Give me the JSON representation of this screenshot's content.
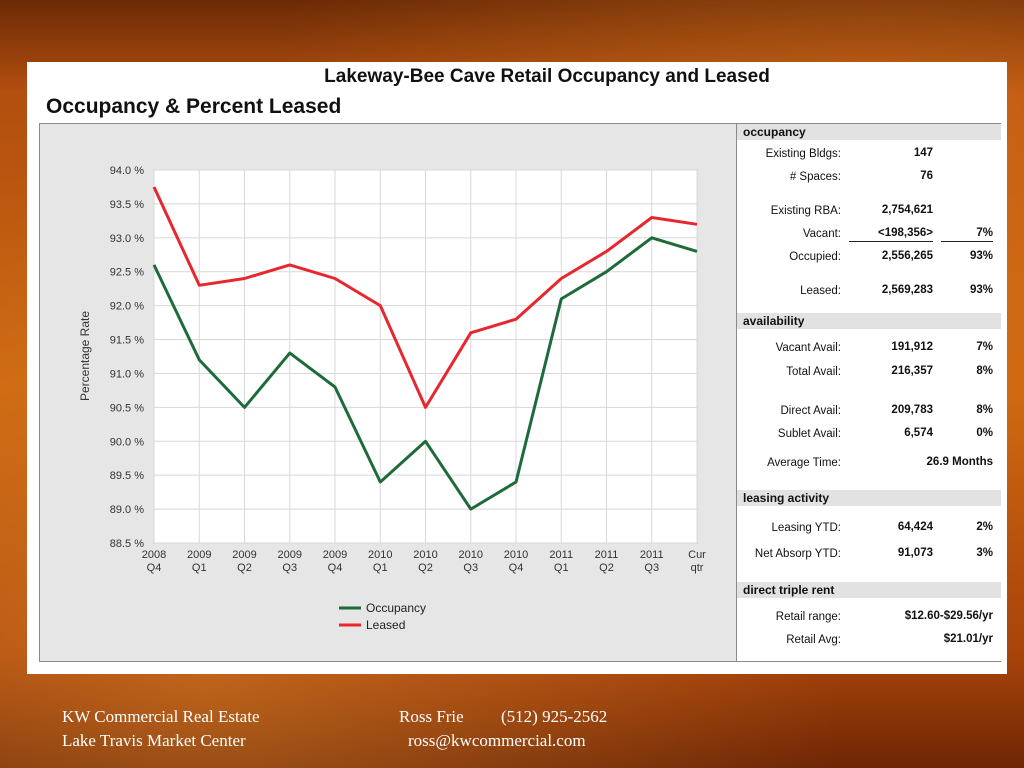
{
  "header": {
    "title": "Lakeway-Bee Cave Retail Occupancy and Leased",
    "subtitle": "Occupancy & Percent Leased"
  },
  "chart_data": {
    "type": "line",
    "ylabel": "Percentage Rate",
    "xlabel": "",
    "ylim": [
      88.5,
      94.0
    ],
    "yticks": [
      "94.0 %",
      "93.5 %",
      "93.0 %",
      "92.5 %",
      "92.0 %",
      "91.5 %",
      "91.0 %",
      "90.5 %",
      "90.0 %",
      "89.5 %",
      "89.0 %",
      "88.5 %"
    ],
    "categories": [
      [
        "2008",
        "Q4"
      ],
      [
        "2009",
        "Q1"
      ],
      [
        "2009",
        "Q2"
      ],
      [
        "2009",
        "Q3"
      ],
      [
        "2009",
        "Q4"
      ],
      [
        "2010",
        "Q1"
      ],
      [
        "2010",
        "Q2"
      ],
      [
        "2010",
        "Q3"
      ],
      [
        "2010",
        "Q4"
      ],
      [
        "2011",
        "Q1"
      ],
      [
        "2011",
        "Q2"
      ],
      [
        "2011",
        "Q3"
      ],
      [
        "Cur",
        "qtr"
      ]
    ],
    "series": [
      {
        "name": "Occupancy",
        "color": "#1e6b3a",
        "values": [
          92.6,
          91.2,
          90.5,
          91.3,
          90.8,
          89.4,
          90.0,
          89.0,
          89.4,
          92.1,
          92.5,
          93.0,
          92.8
        ]
      },
      {
        "name": "Leased",
        "color": "#e8262d",
        "values": [
          93.75,
          92.3,
          92.4,
          92.6,
          92.4,
          92.0,
          90.5,
          91.6,
          91.8,
          92.4,
          92.8,
          93.3,
          93.2
        ]
      }
    ],
    "grid": true,
    "legend": "bottom-center"
  },
  "stats": {
    "occupancy": {
      "title": "occupancy",
      "existing_bldgs": {
        "label": "Existing Bldgs:",
        "value": "147"
      },
      "spaces": {
        "label": "# Spaces:",
        "value": "76"
      },
      "rba": {
        "label": "Existing RBA:",
        "value": "2,754,621"
      },
      "vacant": {
        "label": "Vacant:",
        "value": "<198,356>",
        "pct": "7%"
      },
      "occupied": {
        "label": "Occupied:",
        "value": "2,556,265",
        "pct": "93%"
      },
      "leased": {
        "label": "Leased:",
        "value": "2,569,283",
        "pct": "93%"
      }
    },
    "availability": {
      "title": "availability",
      "vacant_avail": {
        "label": "Vacant Avail:",
        "value": "191,912",
        "pct": "7%"
      },
      "total_avail": {
        "label": "Total Avail:",
        "value": "216,357",
        "pct": "8%"
      },
      "direct_avail": {
        "label": "Direct Avail:",
        "value": "209,783",
        "pct": "8%"
      },
      "sublet_avail": {
        "label": "Sublet Avail:",
        "value": "6,574",
        "pct": "0%"
      },
      "avg_time": {
        "label": "Average Time:",
        "value": "26.9 Months"
      }
    },
    "leasing": {
      "title": "leasing activity",
      "leasing_ytd": {
        "label": "Leasing YTD:",
        "value": "64,424",
        "pct": "2%"
      },
      "net_absorp": {
        "label": "Net Absorp YTD:",
        "value": "91,073",
        "pct": "3%"
      }
    },
    "rent": {
      "title": "direct triple rent",
      "range": {
        "label": "Retail range:",
        "value": "$12.60-$29.56/yr"
      },
      "avg": {
        "label": "Retail Avg:",
        "value": "$21.01/yr"
      }
    }
  },
  "footer": {
    "company": "KW Commercial Real Estate",
    "center": "Lake Travis Market Center",
    "agent": "Ross Frie",
    "phone": "(512) 925-2562",
    "email": "ross@kwcommercial.com"
  }
}
